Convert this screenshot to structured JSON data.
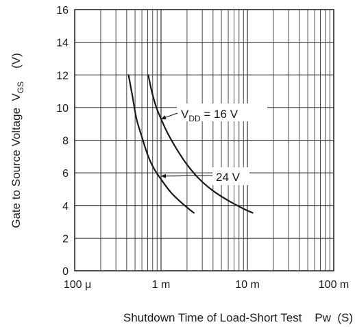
{
  "chart_data": {
    "type": "line",
    "x_scale": "log",
    "xlim": [
      0.0001,
      0.1
    ],
    "ylim": [
      0,
      16
    ],
    "grid": true,
    "x_tick_values": [
      0.0001,
      0.001,
      0.01,
      0.1
    ],
    "x_tick_labels": [
      "100 μ",
      "1 m",
      "10 m",
      "100 m"
    ],
    "y_tick_values": [
      0,
      2,
      4,
      6,
      8,
      10,
      12,
      14,
      16
    ],
    "y_tick_labels": [
      "0",
      "2",
      "4",
      "6",
      "8",
      "10",
      "12",
      "14",
      "16"
    ],
    "xlabel": "Shutdown Time of Load-Short Test    Pw  (S)",
    "ylabel": {
      "main": "Gate to Source Voltage",
      "symbol": "V",
      "symbol_sub": "GS",
      "unit": "(V)"
    },
    "series": [
      {
        "x": [
          0.00071,
          0.00078,
          0.00087,
          0.001,
          0.0012,
          0.0015,
          0.002,
          0.0028,
          0.004,
          0.006,
          0.009,
          0.0115
        ],
        "y": [
          12.0,
          11.0,
          10.1,
          9.3,
          8.4,
          7.5,
          6.5,
          5.6,
          4.9,
          4.3,
          3.8,
          3.55
        ]
      },
      {
        "x": [
          0.00042,
          0.00047,
          0.00052,
          0.0006,
          0.0007,
          0.00082,
          0.001,
          0.0013,
          0.0017,
          0.0022,
          0.0024
        ],
        "y": [
          12.0,
          10.6,
          9.3,
          8.2,
          7.1,
          6.3,
          5.6,
          4.8,
          4.2,
          3.7,
          3.55
        ]
      }
    ],
    "annotations": [
      {
        "label": "V",
        "sub": "DD",
        "rest": " = 16 V",
        "series": 0,
        "point": [
          0.00095,
          9.3
        ]
      },
      {
        "label": "24 V",
        "sub": "",
        "rest": "",
        "series": 1,
        "point": [
          0.00095,
          5.8
        ]
      }
    ]
  },
  "colors": {
    "line": "#1a1a1a",
    "grid": "#1a1a1a",
    "background": "#ffffff"
  }
}
